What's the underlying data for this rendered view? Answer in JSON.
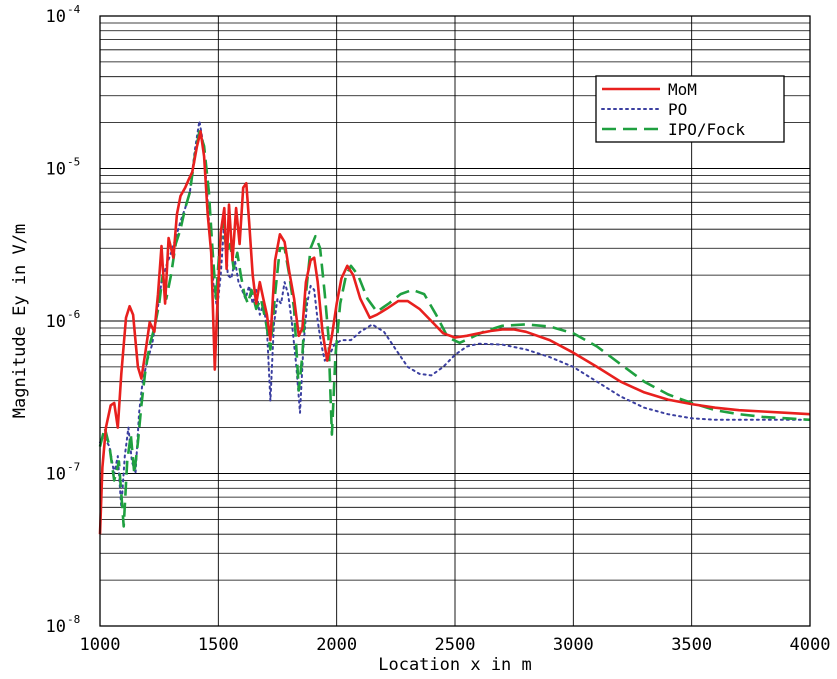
{
  "chart_data": {
    "type": "line",
    "xlabel": "Location x in m",
    "ylabel": "Magnitude Ey in V/m",
    "xlim": [
      1000,
      4000
    ],
    "ylim": [
      1e-08,
      0.0001
    ],
    "yscale": "log",
    "grid": true,
    "legend_position": "top-right",
    "x_ticks": [
      "1000",
      "1500",
      "2000",
      "2500",
      "3000",
      "3500",
      "4000"
    ],
    "y_ticks": [
      {
        "base": "10",
        "exp": "-8",
        "value": 1e-08
      },
      {
        "base": "10",
        "exp": "-7",
        "value": 1e-07
      },
      {
        "base": "10",
        "exp": "-6",
        "value": 1e-06
      },
      {
        "base": "10",
        "exp": "-5",
        "value": 1e-05
      },
      {
        "base": "10",
        "exp": "-4",
        "value": 0.0001
      }
    ],
    "series": [
      {
        "name": "MoM",
        "color": "#e8201e",
        "dash": "solid",
        "points": [
          [
            1000,
            4e-08
          ],
          [
            1010,
            1.1e-07
          ],
          [
            1025,
            2e-07
          ],
          [
            1045,
            2.8e-07
          ],
          [
            1060,
            2.9e-07
          ],
          [
            1075,
            2e-07
          ],
          [
            1090,
            4.5e-07
          ],
          [
            1110,
            1.05e-06
          ],
          [
            1125,
            1.25e-06
          ],
          [
            1140,
            1.1e-06
          ],
          [
            1160,
            5e-07
          ],
          [
            1175,
            4.2e-07
          ],
          [
            1190,
            6e-07
          ],
          [
            1210,
            9.8e-07
          ],
          [
            1230,
            8.5e-07
          ],
          [
            1245,
            1.5e-06
          ],
          [
            1260,
            3.1e-06
          ],
          [
            1275,
            1.3e-06
          ],
          [
            1290,
            3.5e-06
          ],
          [
            1310,
            2.6e-06
          ],
          [
            1325,
            5e-06
          ],
          [
            1340,
            6.6e-06
          ],
          [
            1360,
            7.5e-06
          ],
          [
            1375,
            8.5e-06
          ],
          [
            1390,
            9.5e-06
          ],
          [
            1410,
            1.4e-05
          ],
          [
            1425,
            1.75e-05
          ],
          [
            1440,
            1.2e-05
          ],
          [
            1455,
            5e-06
          ],
          [
            1470,
            2.8e-06
          ],
          [
            1485,
            4.8e-07
          ],
          [
            1495,
            1.2e-06
          ],
          [
            1510,
            3.8e-06
          ],
          [
            1525,
            5.5e-06
          ],
          [
            1535,
            2.2e-06
          ],
          [
            1545,
            5.8e-06
          ],
          [
            1560,
            2.5e-06
          ],
          [
            1575,
            5.5e-06
          ],
          [
            1590,
            3.2e-06
          ],
          [
            1605,
            7.5e-06
          ],
          [
            1618,
            8e-06
          ],
          [
            1630,
            4.5e-06
          ],
          [
            1645,
            2e-06
          ],
          [
            1660,
            1.3e-06
          ],
          [
            1675,
            1.8e-06
          ],
          [
            1690,
            1.4e-06
          ],
          [
            1705,
            1.1e-06
          ],
          [
            1720,
            7.5e-07
          ],
          [
            1740,
            2.5e-06
          ],
          [
            1760,
            3.7e-06
          ],
          [
            1780,
            3.3e-06
          ],
          [
            1800,
            2.1e-06
          ],
          [
            1820,
            1.4e-06
          ],
          [
            1840,
            8e-07
          ],
          [
            1855,
            9e-07
          ],
          [
            1870,
            1.8e-06
          ],
          [
            1890,
            2.5e-06
          ],
          [
            1905,
            2.6e-06
          ],
          [
            1920,
            1.8e-06
          ],
          [
            1940,
            8.5e-07
          ],
          [
            1960,
            5.5e-07
          ],
          [
            1980,
            8e-07
          ],
          [
            2000,
            1.3e-06
          ],
          [
            2020,
            1.9e-06
          ],
          [
            2045,
            2.3e-06
          ],
          [
            2070,
            2e-06
          ],
          [
            2100,
            1.4e-06
          ],
          [
            2140,
            1.05e-06
          ],
          [
            2170,
            1.1e-06
          ],
          [
            2210,
            1.2e-06
          ],
          [
            2260,
            1.35e-06
          ],
          [
            2300,
            1.35e-06
          ],
          [
            2350,
            1.2e-06
          ],
          [
            2400,
            1e-06
          ],
          [
            2450,
            8.3e-07
          ],
          [
            2500,
            7.8e-07
          ],
          [
            2550,
            8e-07
          ],
          [
            2600,
            8.3e-07
          ],
          [
            2650,
            8.6e-07
          ],
          [
            2700,
            8.8e-07
          ],
          [
            2750,
            8.8e-07
          ],
          [
            2800,
            8.5e-07
          ],
          [
            2900,
            7.5e-07
          ],
          [
            3000,
            6.2e-07
          ],
          [
            3100,
            5e-07
          ],
          [
            3200,
            4e-07
          ],
          [
            3300,
            3.4e-07
          ],
          [
            3400,
            3.05e-07
          ],
          [
            3500,
            2.85e-07
          ],
          [
            3600,
            2.7e-07
          ],
          [
            3700,
            2.6e-07
          ],
          [
            3800,
            2.55e-07
          ],
          [
            3900,
            2.5e-07
          ],
          [
            4000,
            2.45e-07
          ]
        ]
      },
      {
        "name": "PO",
        "color": "#3b3fa0",
        "dash": "dotted",
        "points": [
          [
            1000,
            1.6e-07
          ],
          [
            1020,
            1.7e-07
          ],
          [
            1040,
            1.5e-07
          ],
          [
            1060,
            1e-07
          ],
          [
            1075,
            1.3e-07
          ],
          [
            1090,
            6e-08
          ],
          [
            1105,
            1.3e-07
          ],
          [
            1120,
            2e-07
          ],
          [
            1135,
            1.2e-07
          ],
          [
            1150,
            1e-07
          ],
          [
            1165,
            2.5e-07
          ],
          [
            1180,
            4e-07
          ],
          [
            1200,
            5.5e-07
          ],
          [
            1220,
            7e-07
          ],
          [
            1240,
            1.1e-06
          ],
          [
            1260,
            1.8e-06
          ],
          [
            1280,
            2.3e-06
          ],
          [
            1300,
            2.8e-06
          ],
          [
            1320,
            3.5e-06
          ],
          [
            1340,
            4.5e-06
          ],
          [
            1360,
            5.5e-06
          ],
          [
            1380,
            7e-06
          ],
          [
            1400,
            1.3e-05
          ],
          [
            1420,
            2.05e-05
          ],
          [
            1435,
            1.5e-05
          ],
          [
            1450,
            8e-06
          ],
          [
            1465,
            3.5e-06
          ],
          [
            1480,
            1.7e-06
          ],
          [
            1495,
            1.2e-06
          ],
          [
            1510,
            2e-06
          ],
          [
            1525,
            4.5e-06
          ],
          [
            1540,
            2e-06
          ],
          [
            1555,
            1.9e-06
          ],
          [
            1570,
            2.5e-06
          ],
          [
            1585,
            1.8e-06
          ],
          [
            1600,
            1.6e-06
          ],
          [
            1615,
            1.4e-06
          ],
          [
            1630,
            1.7e-06
          ],
          [
            1645,
            1.3e-06
          ],
          [
            1660,
            1.6e-06
          ],
          [
            1675,
            1.1e-06
          ],
          [
            1690,
            1.3e-06
          ],
          [
            1705,
            9e-07
          ],
          [
            1720,
            3e-07
          ],
          [
            1735,
            9.5e-07
          ],
          [
            1750,
            1.4e-06
          ],
          [
            1765,
            1.3e-06
          ],
          [
            1780,
            1.8e-06
          ],
          [
            1795,
            1.5e-06
          ],
          [
            1810,
            1e-06
          ],
          [
            1830,
            5e-07
          ],
          [
            1845,
            2.5e-07
          ],
          [
            1860,
            7e-07
          ],
          [
            1875,
            1.3e-06
          ],
          [
            1890,
            1.7e-06
          ],
          [
            1905,
            1.6e-06
          ],
          [
            1920,
            1e-06
          ],
          [
            1935,
            7e-07
          ],
          [
            1950,
            5.5e-07
          ],
          [
            1970,
            6e-07
          ],
          [
            1990,
            7e-07
          ],
          [
            2020,
            7.5e-07
          ],
          [
            2060,
            7.5e-07
          ],
          [
            2100,
            8.5e-07
          ],
          [
            2150,
            9.5e-07
          ],
          [
            2200,
            8.5e-07
          ],
          [
            2250,
            6.5e-07
          ],
          [
            2300,
            5e-07
          ],
          [
            2350,
            4.5e-07
          ],
          [
            2400,
            4.4e-07
          ],
          [
            2450,
            5e-07
          ],
          [
            2500,
            6e-07
          ],
          [
            2550,
            6.8e-07
          ],
          [
            2600,
            7.1e-07
          ],
          [
            2700,
            7e-07
          ],
          [
            2800,
            6.5e-07
          ],
          [
            2900,
            5.8e-07
          ],
          [
            3000,
            5e-07
          ],
          [
            3100,
            4e-07
          ],
          [
            3200,
            3.2e-07
          ],
          [
            3300,
            2.7e-07
          ],
          [
            3400,
            2.45e-07
          ],
          [
            3500,
            2.3e-07
          ],
          [
            3600,
            2.25e-07
          ],
          [
            3700,
            2.25e-07
          ],
          [
            3800,
            2.25e-07
          ],
          [
            3900,
            2.25e-07
          ],
          [
            4000,
            2.25e-07
          ]
        ]
      },
      {
        "name": "IPO/Fock",
        "color": "#1fa040",
        "dash": "dashed",
        "points": [
          [
            1000,
            1.5e-07
          ],
          [
            1020,
            2e-07
          ],
          [
            1040,
            1.5e-07
          ],
          [
            1060,
            9e-08
          ],
          [
            1080,
            1.2e-07
          ],
          [
            1100,
            4.5e-08
          ],
          [
            1115,
            1.2e-07
          ],
          [
            1130,
            1.8e-07
          ],
          [
            1145,
            1e-07
          ],
          [
            1160,
            1.6e-07
          ],
          [
            1175,
            2.8e-07
          ],
          [
            1190,
            4.5e-07
          ],
          [
            1210,
            7e-07
          ],
          [
            1230,
            9e-07
          ],
          [
            1250,
            1.3e-06
          ],
          [
            1265,
            2e-06
          ],
          [
            1280,
            1.4e-06
          ],
          [
            1300,
            2e-06
          ],
          [
            1320,
            3.2e-06
          ],
          [
            1340,
            4e-06
          ],
          [
            1360,
            5.5e-06
          ],
          [
            1380,
            7e-06
          ],
          [
            1400,
            1.2e-05
          ],
          [
            1420,
            1.75e-05
          ],
          [
            1440,
            1.4e-05
          ],
          [
            1460,
            7e-06
          ],
          [
            1475,
            3e-06
          ],
          [
            1490,
            1.4e-06
          ],
          [
            1505,
            3e-06
          ],
          [
            1520,
            4.5e-06
          ],
          [
            1535,
            2.8e-06
          ],
          [
            1550,
            3.2e-06
          ],
          [
            1565,
            2.2e-06
          ],
          [
            1580,
            2.8e-06
          ],
          [
            1595,
            2e-06
          ],
          [
            1610,
            1.5e-06
          ],
          [
            1625,
            1.3e-06
          ],
          [
            1640,
            1.6e-06
          ],
          [
            1660,
            1.2e-06
          ],
          [
            1680,
            1.4e-06
          ],
          [
            1700,
            1e-06
          ],
          [
            1720,
            6.5e-07
          ],
          [
            1740,
            1.5e-06
          ],
          [
            1760,
            3e-06
          ],
          [
            1780,
            3e-06
          ],
          [
            1800,
            2e-06
          ],
          [
            1820,
            1.2e-06
          ],
          [
            1840,
            3.5e-07
          ],
          [
            1855,
            6e-07
          ],
          [
            1870,
            1.5e-06
          ],
          [
            1890,
            3e-06
          ],
          [
            1910,
            3.6e-06
          ],
          [
            1930,
            3e-06
          ],
          [
            1950,
            1.5e-06
          ],
          [
            1965,
            8e-07
          ],
          [
            1980,
            1.8e-07
          ],
          [
            1995,
            6e-07
          ],
          [
            2015,
            1.3e-06
          ],
          [
            2040,
            2e-06
          ],
          [
            2060,
            2.3e-06
          ],
          [
            2090,
            2e-06
          ],
          [
            2130,
            1.4e-06
          ],
          [
            2170,
            1.15e-06
          ],
          [
            2220,
            1.3e-06
          ],
          [
            2270,
            1.5e-06
          ],
          [
            2320,
            1.6e-06
          ],
          [
            2370,
            1.5e-06
          ],
          [
            2420,
            1.1e-06
          ],
          [
            2470,
            7.8e-07
          ],
          [
            2520,
            7.2e-07
          ],
          [
            2570,
            7.8e-07
          ],
          [
            2620,
            8.5e-07
          ],
          [
            2700,
            9.3e-07
          ],
          [
            2800,
            9.5e-07
          ],
          [
            2900,
            9.2e-07
          ],
          [
            3000,
            8.3e-07
          ],
          [
            3100,
            6.8e-07
          ],
          [
            3200,
            5.2e-07
          ],
          [
            3300,
            4e-07
          ],
          [
            3400,
            3.3e-07
          ],
          [
            3500,
            2.9e-07
          ],
          [
            3600,
            2.6e-07
          ],
          [
            3700,
            2.45e-07
          ],
          [
            3800,
            2.35e-07
          ],
          [
            3900,
            2.3e-07
          ],
          [
            4000,
            2.25e-07
          ]
        ]
      }
    ]
  }
}
